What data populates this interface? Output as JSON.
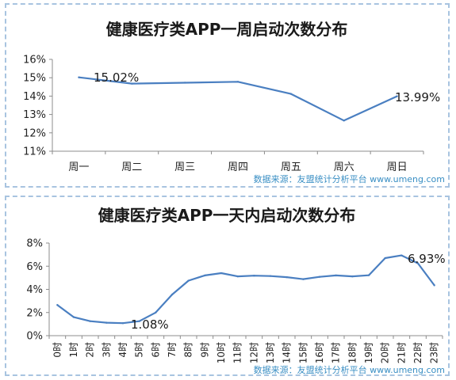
{
  "chart_data": [
    {
      "type": "line",
      "title": "健康医疗类APP一周启动次数分布",
      "categories": [
        "周一",
        "周二",
        "周三",
        "周四",
        "周五",
        "周六",
        "周日"
      ],
      "series": [
        {
          "values": [
            15.02,
            14.68,
            14.73,
            14.78,
            14.12,
            12.67,
            13.99
          ]
        }
      ],
      "y_ticks": [
        "16%",
        "15%",
        "14%",
        "13%",
        "12%",
        "11%"
      ],
      "ylim": [
        11,
        16
      ],
      "annotations": [
        "15.02%",
        "13.99%"
      ],
      "source": "数据来源：友盟统计分析平台 www.umeng.com",
      "line_color": "#4a7fc1",
      "grid": false
    },
    {
      "type": "line",
      "title": "健康医疗类APP一天内启动次数分布",
      "categories": [
        "0时",
        "1时",
        "2时",
        "3时",
        "4时",
        "5时",
        "6时",
        "7时",
        "8时",
        "9时",
        "10时",
        "11时",
        "12时",
        "13时",
        "14时",
        "15时",
        "16时",
        "17时",
        "18时",
        "19时",
        "20时",
        "21时",
        "22时",
        "23时"
      ],
      "series": [
        {
          "values": [
            2.65,
            1.6,
            1.25,
            1.12,
            1.08,
            1.25,
            2.0,
            3.55,
            4.75,
            5.2,
            5.4,
            5.12,
            5.18,
            5.15,
            5.05,
            4.88,
            5.08,
            5.2,
            5.12,
            5.22,
            6.7,
            6.93,
            6.25,
            4.35
          ]
        }
      ],
      "y_ticks": [
        "8%",
        "6%",
        "4%",
        "2%",
        "0%"
      ],
      "ylim": [
        0,
        8
      ],
      "annotations": [
        "1.08%",
        "6.93%"
      ],
      "source": "数据来源：友盟统计分析平台 www.umeng.com",
      "line_color": "#4a7fc1",
      "grid": false
    }
  ]
}
